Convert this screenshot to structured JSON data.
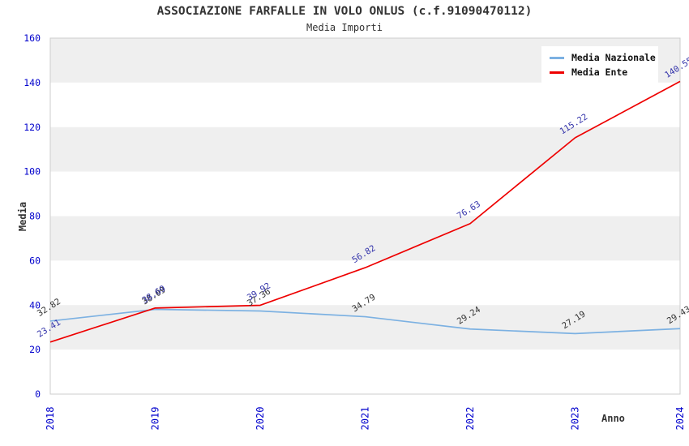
{
  "title": "ASSOCIAZIONE FARFALLE IN VOLO ONLUS (c.f.91090470112)",
  "subtitle": "Media Importi",
  "colors": {
    "nazionale_line": "#7cb1e2",
    "ente_line": "#ee0000",
    "axis_text": "#0000cc",
    "label_nazionale": "#333333",
    "label_ente": "#3333aa",
    "band_gray": "#efefef",
    "band_white": "#ffffff",
    "plot_border": "#cccccc",
    "text_dark": "#333333"
  },
  "chart_data": {
    "type": "line",
    "title": "ASSOCIAZIONE FARFALLE IN VOLO ONLUS (c.f.91090470112)",
    "subtitle": "Media Importi",
    "xlabel": "Anno",
    "ylabel": "Media",
    "x": [
      2018,
      2019,
      2020,
      2021,
      2022,
      2023,
      2024
    ],
    "series": [
      {
        "name": "Media Nazionale",
        "values": [
          32.82,
          38.09,
          37.36,
          34.79,
          29.24,
          27.19,
          29.43
        ],
        "color_key": "nazionale_line",
        "label_color_key": "label_nazionale"
      },
      {
        "name": "Media Ente",
        "values": [
          23.41,
          38.69,
          39.92,
          56.82,
          76.63,
          115.22,
          140.55
        ],
        "color_key": "ente_line",
        "label_color_key": "label_ente"
      }
    ],
    "ylim": [
      0,
      160
    ],
    "yticks": [
      0,
      20,
      40,
      60,
      80,
      100,
      120,
      140,
      160
    ],
    "grid": "alternating-horizontal-bands",
    "legend_position": "top-right",
    "data_labels": "rotated, two decimals"
  },
  "legend": {
    "items": [
      {
        "label": "Media Nazionale"
      },
      {
        "label": "Media Ente"
      }
    ]
  }
}
